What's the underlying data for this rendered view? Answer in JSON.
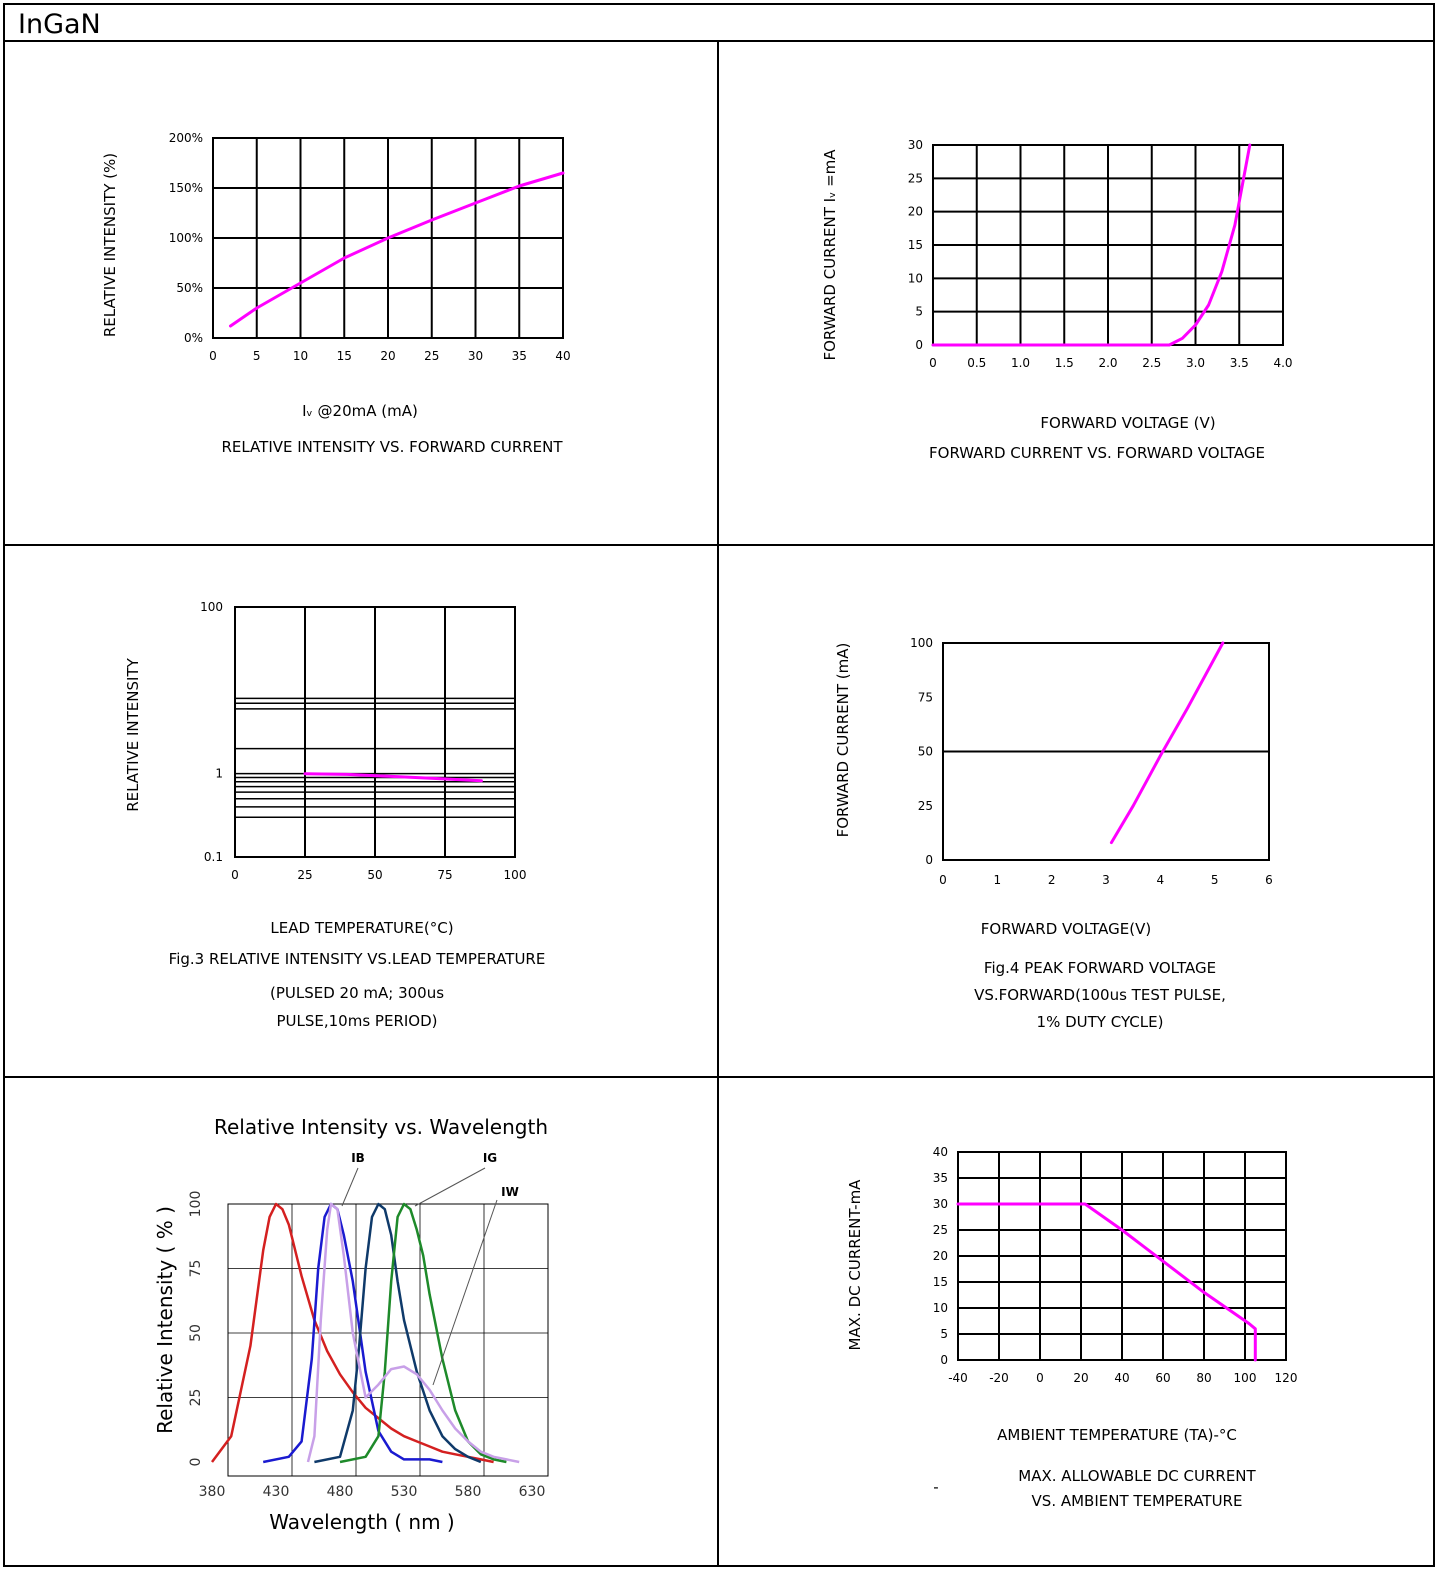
{
  "header": {
    "title": "InGaN"
  },
  "colors": {
    "curve": "#ff00ff",
    "grid": "#000000",
    "red": "#d42020",
    "blue": "#1a1ad0",
    "navy": "#0f3a6a",
    "green": "#1e8a2a",
    "lavender": "#c8a0e8"
  },
  "chart_data": [
    {
      "id": "c1",
      "type": "line",
      "title": "RELATIVE INTENSITY VS. FORWARD CURRENT",
      "xlabel": "Iᵥ @20mA (mA)",
      "ylabel": "RELATIVE INTENSITY (%)",
      "xlim": [
        0,
        40
      ],
      "ylim": [
        0,
        200
      ],
      "xticks": [
        "0",
        "5",
        "10",
        "15",
        "20",
        "25",
        "30",
        "35",
        "40"
      ],
      "yticks": [
        "0%",
        "50%",
        "100%",
        "150%",
        "200%"
      ],
      "grid": true,
      "series": [
        {
          "x": [
            2,
            5,
            10,
            15,
            20,
            25,
            30,
            35,
            40
          ],
          "y": [
            12,
            30,
            55,
            80,
            100,
            118,
            135,
            152,
            165
          ]
        }
      ]
    },
    {
      "id": "c2",
      "type": "line",
      "title": "FORWARD CURRENT VS. FORWARD VOLTAGE",
      "xlabel": "FORWARD VOLTAGE (V)",
      "ylabel": "FORWARD CURRENT Iᵥ =mA",
      "xlim": [
        0,
        4
      ],
      "ylim": [
        0,
        30
      ],
      "xticks": [
        "0",
        "0.5",
        "1.0",
        "1.5",
        "2.0",
        "2.5",
        "3.0",
        "3.5",
        "4.0"
      ],
      "yticks": [
        "0",
        "5",
        "10",
        "15",
        "20",
        "25",
        "30"
      ],
      "grid": true,
      "series": [
        {
          "x": [
            0,
            2.7,
            2.85,
            3.0,
            3.15,
            3.3,
            3.45,
            3.55,
            3.62
          ],
          "y": [
            0,
            0,
            1,
            3,
            6,
            11,
            18,
            25,
            30
          ]
        }
      ]
    },
    {
      "id": "c3",
      "type": "line",
      "title": "Fig.3 RELATIVE INTENSITY VS.LEAD TEMPERATURE",
      "subtitle": [
        "(PULSED 20 mA; 300us",
        "PULSE,10ms PERIOD)"
      ],
      "xlabel": "LEAD TEMPERATURE(°C)",
      "ylabel": "RELATIVE INTENSITY",
      "xlim": [
        0,
        100
      ],
      "ylim": [
        0.1,
        100
      ],
      "yscale": "log",
      "xticks": [
        "0",
        "25",
        "50",
        "75",
        "100"
      ],
      "yticks": [
        "0.1",
        "1",
        "100"
      ],
      "grid": true,
      "series": [
        {
          "x": [
            25,
            40,
            55,
            70,
            88
          ],
          "y": [
            1.0,
            0.98,
            0.93,
            0.88,
            0.82
          ]
        }
      ]
    },
    {
      "id": "c4",
      "type": "line",
      "title": [
        "Fig.4 PEAK FORWARD VOLTAGE",
        "VS.FORWARD(100us TEST PULSE,",
        "1% DUTY CYCLE)"
      ],
      "xlabel": "FORWARD VOLTAGE(V)",
      "ylabel": "FORWARD CURRENT (mA)",
      "xlim": [
        0,
        6
      ],
      "ylim": [
        0,
        100
      ],
      "xticks": [
        "0",
        "1",
        "2",
        "3",
        "4",
        "5",
        "6"
      ],
      "yticks": [
        "0",
        "25",
        "50",
        "75",
        "100"
      ],
      "grid": false,
      "series": [
        {
          "x": [
            3.1,
            3.5,
            4.0,
            4.5,
            5.15
          ],
          "y": [
            8,
            25,
            48,
            70,
            100
          ]
        }
      ]
    },
    {
      "id": "c5",
      "type": "line",
      "title": "Relative Intensity vs. Wavelength",
      "xlabel": "Wavelength ( nm )",
      "ylabel": "Relative Intensity ( % )",
      "xlim": [
        380,
        630
      ],
      "ylim": [
        0,
        100
      ],
      "xticks": [
        "380",
        "430",
        "480",
        "530",
        "580",
        "630"
      ],
      "yticks": [
        "0",
        "25",
        "50",
        "75",
        "100"
      ],
      "grid": true,
      "annotations": [
        "IB",
        "IG",
        "IW"
      ],
      "series": [
        {
          "color": "red",
          "x": [
            380,
            395,
            410,
            420,
            425,
            430,
            435,
            440,
            450,
            460,
            470,
            480,
            490,
            500,
            510,
            520,
            530,
            540,
            550,
            560,
            570,
            580,
            590,
            600
          ],
          "y": [
            0,
            10,
            45,
            82,
            95,
            100,
            98,
            92,
            72,
            55,
            43,
            34,
            27,
            21,
            17,
            13,
            10,
            8,
            6,
            4,
            3,
            2,
            1,
            0
          ]
        },
        {
          "name": "IB",
          "color": "blue",
          "x": [
            420,
            440,
            450,
            458,
            463,
            468,
            473,
            478,
            483,
            490,
            500,
            510,
            520,
            530,
            540,
            550,
            560
          ],
          "y": [
            0,
            2,
            8,
            40,
            75,
            95,
            100,
            98,
            88,
            70,
            35,
            12,
            4,
            1,
            1,
            1,
            0
          ]
        },
        {
          "color": "navy",
          "x": [
            460,
            480,
            490,
            495,
            500,
            505,
            510,
            515,
            520,
            525,
            530,
            540,
            550,
            560,
            570,
            580,
            590
          ],
          "y": [
            0,
            2,
            20,
            45,
            75,
            95,
            100,
            98,
            88,
            70,
            55,
            35,
            20,
            10,
            5,
            2,
            0
          ]
        },
        {
          "name": "IG",
          "color": "green",
          "x": [
            480,
            500,
            510,
            515,
            520,
            525,
            530,
            535,
            540,
            545,
            550,
            560,
            570,
            580,
            590,
            600,
            610
          ],
          "y": [
            0,
            2,
            10,
            35,
            70,
            95,
            100,
            98,
            90,
            80,
            65,
            40,
            20,
            8,
            3,
            1,
            0
          ]
        },
        {
          "name": "IW",
          "color": "lavender",
          "x": [
            455,
            460,
            465,
            470,
            473,
            478,
            483,
            490,
            500,
            510,
            520,
            530,
            540,
            550,
            560,
            570,
            580,
            590,
            600,
            610,
            620
          ],
          "y": [
            0,
            10,
            55,
            90,
            100,
            98,
            80,
            50,
            25,
            30,
            36,
            37,
            34,
            28,
            20,
            13,
            8,
            4,
            2,
            1,
            0
          ]
        }
      ]
    },
    {
      "id": "c6",
      "type": "line",
      "title": [
        "MAX. ALLOWABLE DC CURRENT",
        "VS. AMBIENT TEMPERATURE"
      ],
      "xlabel": "AMBIENT TEMPERATURE (TA)-°C",
      "ylabel": "MAX. DC CURRENT-mA",
      "xlim": [
        -40,
        120
      ],
      "ylim": [
        0,
        40
      ],
      "xticks": [
        "-40",
        "-20",
        "0",
        "20",
        "40",
        "60",
        "80",
        "100",
        "120"
      ],
      "yticks": [
        "0",
        "5",
        "10",
        "15",
        "20",
        "25",
        "30",
        "35",
        "40"
      ],
      "grid": true,
      "series": [
        {
          "x": [
            -40,
            22,
            40,
            60,
            80,
            102,
            105,
            105
          ],
          "y": [
            30,
            30,
            25,
            19,
            13,
            7,
            6,
            0
          ]
        }
      ]
    }
  ]
}
